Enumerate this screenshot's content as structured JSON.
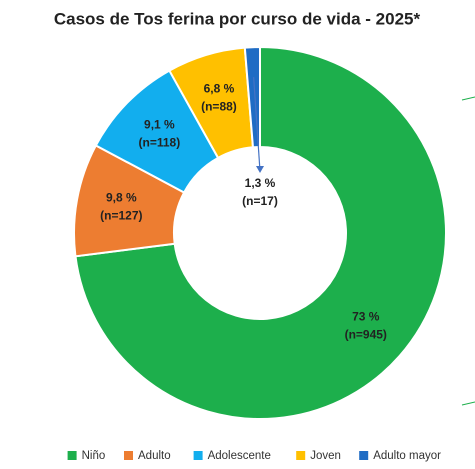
{
  "chart_data": {
    "type": "donut",
    "title": "Casos de Tos ferina por curso de vida - 2025*",
    "categories": [
      "Niño",
      "Adulto",
      "Adolescente",
      "Joven",
      "Adulto mayor"
    ],
    "values": [
      73,
      9.8,
      9.1,
      6.8,
      1.3
    ],
    "value_labels": [
      "73 %",
      "9,8 %",
      "9,1 %",
      "6,8 %",
      "1,3 %"
    ],
    "counts": [
      945,
      127,
      118,
      88,
      17
    ],
    "count_labels": [
      "(n=945)",
      "(n=127)",
      "(n=118)",
      "(n=88)",
      "(n=17)"
    ],
    "colors": [
      "#1daf4c",
      "#ed7d31",
      "#12aeee",
      "#ffc000",
      "#1f6cc4"
    ],
    "legend": "bottom"
  }
}
